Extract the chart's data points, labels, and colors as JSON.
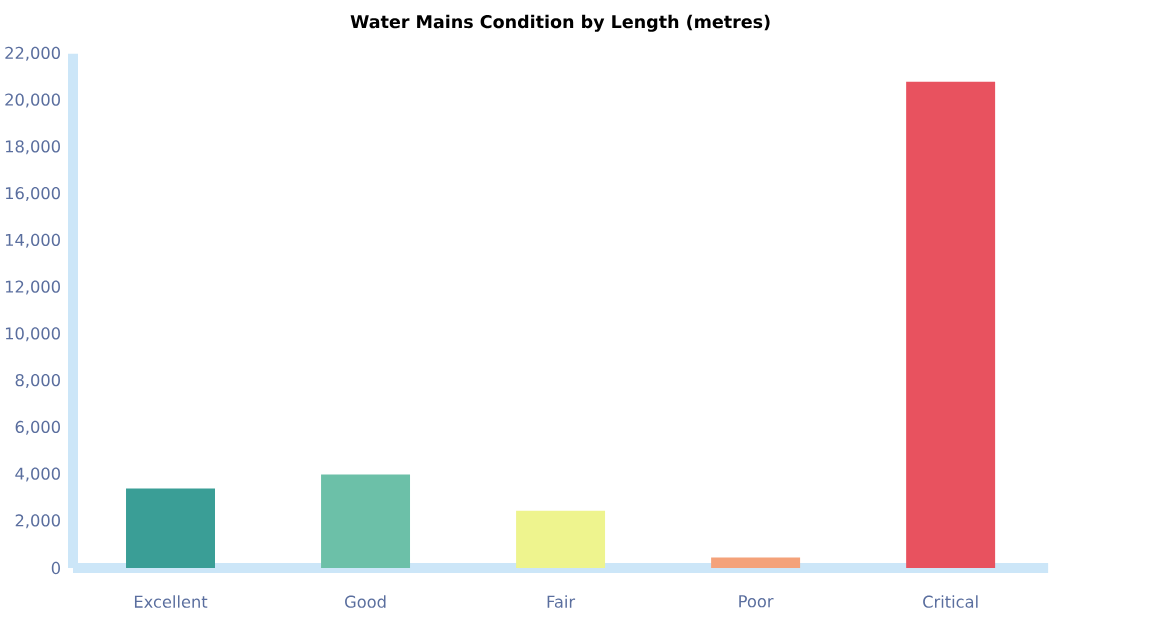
{
  "chart_data": {
    "type": "bar",
    "title": "Water Mains Condition by Length (metres)",
    "categories": [
      "Excellent",
      "Good",
      "Fair",
      "Poor",
      "Critical"
    ],
    "values": [
      3400,
      4000,
      2450,
      450,
      20800
    ],
    "colors": [
      "#3a9e96",
      "#6cc0a8",
      "#eef48e",
      "#f4a27a",
      "#e8525f"
    ],
    "ylim": [
      0,
      22000
    ],
    "yticks": [
      {
        "value": 0,
        "label": "0"
      },
      {
        "value": 2000,
        "label": "2,000"
      },
      {
        "value": 4000,
        "label": "4,000"
      },
      {
        "value": 6000,
        "label": "6,000"
      },
      {
        "value": 8000,
        "label": "8,000"
      },
      {
        "value": 10000,
        "label": "10,000"
      },
      {
        "value": 12000,
        "label": "12,000"
      },
      {
        "value": 14000,
        "label": "14,000"
      },
      {
        "value": 16000,
        "label": "16,000"
      },
      {
        "value": 18000,
        "label": "18,000"
      },
      {
        "value": 20000,
        "label": "20,000"
      },
      {
        "value": 22000,
        "label": "22,000"
      }
    ]
  }
}
